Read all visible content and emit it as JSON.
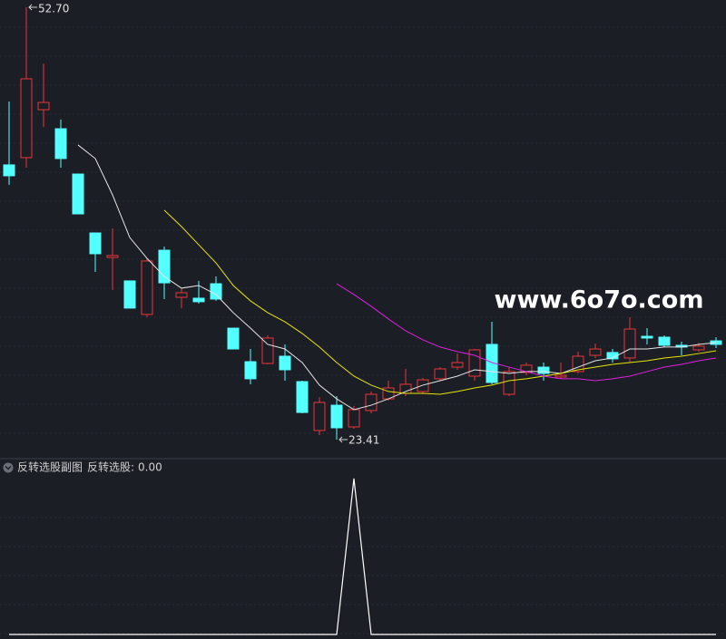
{
  "chart_data": [
    {
      "type": "candlestick",
      "watermark": "www.6o7o.com",
      "open": [
        42.02,
        42.51,
        45.76,
        44.47,
        41.4,
        37.41,
        35.75,
        34.16,
        31.89,
        36.24,
        33.05,
        32.99,
        33.97,
        30.96,
        28.69,
        28.57,
        29.06,
        27.34,
        24.03,
        25.74,
        24.27,
        25.38,
        26.17,
        26.54,
        26.67,
        27.53,
        28.32,
        27.71,
        29.86,
        26.48,
        27.96,
        28.32,
        27.65,
        28.02,
        29.12,
        29.31,
        28.94,
        30.41,
        30.35,
        29.8,
        29.49,
        30.1
      ],
      "close": [
        41.28,
        47.85,
        46.25,
        42.45,
        38.7,
        36.0,
        35.88,
        32.32,
        35.51,
        34.03,
        33.36,
        32.75,
        32.93,
        29.55,
        27.53,
        30.29,
        28.14,
        25.25,
        25.93,
        24.21,
        25.44,
        26.48,
        26.91,
        27.16,
        27.46,
        28.2,
        28.63,
        29.49,
        27.28,
        28.02,
        28.45,
        27.89,
        27.77,
        29.06,
        29.55,
        28.88,
        30.9,
        30.29,
        29.8,
        29.68,
        29.74,
        29.86
      ],
      "high": [
        46.31,
        52.7,
        48.89,
        45.09,
        41.4,
        37.41,
        37.72,
        34.16,
        35.69,
        36.49,
        33.67,
        34.16,
        34.46,
        30.96,
        29.55,
        30.47,
        29.86,
        27.4,
        26.3,
        26.36,
        25.68,
        26.67,
        27.4,
        28.2,
        27.59,
        28.32,
        29.25,
        29.55,
        31.39,
        28.32,
        28.63,
        28.63,
        28.63,
        29.37,
        29.92,
        29.55,
        31.7,
        30.96,
        30.47,
        30.04,
        29.98,
        30.35
      ],
      "low": [
        40.67,
        41.83,
        44.6,
        41.83,
        38.7,
        34.77,
        33.54,
        32.32,
        31.7,
        32.93,
        32.32,
        32.62,
        32.81,
        29.55,
        27.16,
        28.51,
        27.4,
        25.19,
        23.72,
        23.41,
        24.15,
        25.19,
        26.05,
        26.36,
        26.48,
        27.4,
        28.14,
        27.4,
        27.16,
        26.36,
        27.77,
        27.4,
        27.53,
        27.89,
        28.94,
        28.63,
        28.63,
        29.86,
        29.68,
        29.12,
        29.37,
        29.61
      ],
      "up_color": "#e8373a",
      "down_color": "#54ffff",
      "series": [
        {
          "color": "#e6e6e6",
          "values": [
            null,
            null,
            null,
            null,
            43.37,
            42.45,
            39.99,
            37.1,
            35.69,
            34.46,
            33.67,
            33.85,
            33.24,
            32.01,
            30.96,
            29.86,
            29.55,
            28.63,
            27.1,
            26.17,
            25.44,
            25.74,
            26.17,
            26.67,
            27.1,
            27.4,
            27.71,
            28.14,
            28.02,
            27.89,
            28.02,
            28.02,
            27.89,
            28.32,
            28.75,
            28.94,
            29.55,
            29.55,
            29.68,
            29.68,
            29.86,
            29.98
          ]
        },
        {
          "color": "#e6e600",
          "values": [
            null,
            null,
            null,
            null,
            null,
            null,
            null,
            null,
            null,
            38.95,
            37.84,
            36.61,
            35.38,
            33.85,
            32.81,
            32.01,
            31.39,
            30.6,
            29.68,
            28.63,
            27.71,
            27.1,
            26.67,
            26.54,
            26.54,
            26.48,
            26.67,
            26.91,
            27.1,
            27.4,
            27.53,
            27.71,
            27.89,
            28.14,
            28.32,
            28.51,
            28.63,
            28.75,
            28.94,
            29.06,
            29.24,
            29.43
          ]
        },
        {
          "color": "#e020e0",
          "values": [
            null,
            null,
            null,
            null,
            null,
            null,
            null,
            null,
            null,
            null,
            null,
            null,
            null,
            null,
            null,
            null,
            null,
            null,
            null,
            33.97,
            33.24,
            32.44,
            31.58,
            30.78,
            30.17,
            29.68,
            29.37,
            29.12,
            28.63,
            28.32,
            28.02,
            27.71,
            27.53,
            27.53,
            27.4,
            27.53,
            27.71,
            28.02,
            28.32,
            28.51,
            28.75,
            28.94
          ]
        }
      ],
      "ylim": [
        22.49,
        53.19
      ],
      "max_label": {
        "value": 52.7,
        "label": "52.70"
      },
      "min_label": {
        "value": 23.41,
        "label": "23.41"
      }
    },
    {
      "type": "line",
      "title": "反转选股副图",
      "series": [
        {
          "name": "反转选股:",
          "color": "#ffffff",
          "last_value_label": "0.00",
          "values": [
            0,
            0,
            0,
            0,
            0,
            0,
            0,
            0,
            0,
            0,
            0,
            0,
            0,
            0,
            0,
            0,
            0,
            0,
            0,
            0,
            1,
            0,
            0,
            0,
            0,
            0,
            0,
            0,
            0,
            0,
            0,
            0,
            0,
            0,
            0,
            0,
            0,
            0,
            0,
            0,
            0,
            0
          ]
        }
      ],
      "ylim": [
        0,
        1
      ]
    }
  ]
}
